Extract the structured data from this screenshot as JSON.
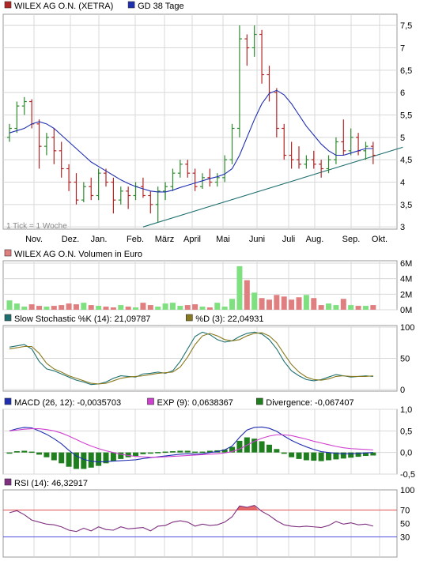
{
  "colors": {
    "up": "#2f8a2f",
    "down": "#b02626",
    "ma": "#1f2fb0",
    "trend": "#1f6f6f",
    "vol_up": "#7fe07f",
    "vol_down": "#e07f7f",
    "stoch_k": "#1f6f6f",
    "stoch_d": "#8a7a1f",
    "macd": "#1f2fb0",
    "exp": "#d040d0",
    "div": "#1f7f1f",
    "rsi": "#7f2f7f",
    "rsi_70": "#e05050",
    "rsi_30": "#5050e0",
    "grid": "#d8d8d8",
    "frame": "#999999"
  },
  "chart_data": [
    {
      "type": "candlestick",
      "legend": [
        {
          "name": "WILEX AG O.N. (XETRA)",
          "color": "#b02626"
        },
        {
          "name": "GD 38 Tage",
          "color": "#1f2fb0"
        }
      ],
      "note": "1 Tick = 1 Woche",
      "x_ticks": [
        "Nov.",
        "Dez.",
        "Jan.",
        "Feb.",
        "März",
        "April",
        "Mai",
        "Juni",
        "Juli",
        "Aug.",
        "Sep.",
        "Okt."
      ],
      "y_ticks": [
        "3",
        "3,5",
        "4",
        "4,5",
        "5",
        "5,5",
        "6",
        "6,5",
        "7",
        "7,5"
      ],
      "ylim": [
        2.95,
        7.75
      ],
      "candles": [
        [
          5.0,
          5.3,
          4.9,
          5.2
        ],
        [
          5.2,
          5.8,
          5.1,
          5.7
        ],
        [
          5.7,
          5.9,
          5.5,
          5.8
        ],
        [
          5.8,
          5.85,
          5.2,
          5.3
        ],
        [
          5.3,
          5.4,
          4.3,
          4.8
        ],
        [
          4.8,
          5.1,
          4.6,
          5.0
        ],
        [
          5.0,
          5.2,
          4.4,
          4.7
        ],
        [
          4.7,
          4.9,
          4.1,
          4.3
        ],
        [
          4.3,
          4.4,
          3.8,
          4.0
        ],
        [
          4.0,
          4.2,
          3.5,
          3.6
        ],
        [
          3.6,
          4.0,
          3.55,
          3.9
        ],
        [
          3.9,
          4.1,
          3.6,
          3.7
        ],
        [
          3.7,
          4.3,
          3.6,
          4.2
        ],
        [
          4.2,
          4.3,
          3.9,
          4.0
        ],
        [
          4.0,
          4.1,
          3.3,
          3.6
        ],
        [
          3.6,
          3.9,
          3.5,
          3.8
        ],
        [
          3.8,
          3.9,
          3.4,
          3.7
        ],
        [
          3.7,
          4.0,
          3.6,
          3.9
        ],
        [
          3.9,
          4.1,
          3.65,
          3.7
        ],
        [
          3.7,
          3.8,
          3.3,
          3.5
        ],
        [
          3.5,
          3.9,
          3.1,
          3.8
        ],
        [
          3.8,
          4.0,
          3.6,
          3.9
        ],
        [
          3.9,
          4.3,
          3.8,
          4.2
        ],
        [
          4.2,
          4.5,
          4.1,
          4.4
        ],
        [
          4.4,
          4.5,
          4.1,
          4.2
        ],
        [
          4.2,
          4.3,
          3.8,
          3.9
        ],
        [
          3.9,
          4.2,
          3.85,
          4.1
        ],
        [
          4.1,
          4.3,
          3.9,
          4.0
        ],
        [
          4.0,
          4.2,
          3.9,
          4.1
        ],
        [
          4.1,
          4.6,
          4.0,
          4.5
        ],
        [
          4.5,
          5.3,
          4.4,
          5.2
        ],
        [
          5.2,
          7.5,
          5.0,
          7.2
        ],
        [
          7.2,
          7.3,
          6.6,
          7.0
        ],
        [
          7.0,
          7.5,
          6.8,
          7.3
        ],
        [
          7.3,
          7.4,
          6.2,
          6.4
        ],
        [
          6.4,
          6.6,
          5.8,
          6.0
        ],
        [
          6.0,
          6.1,
          5.0,
          5.2
        ],
        [
          5.2,
          5.3,
          4.5,
          4.6
        ],
        [
          4.6,
          4.9,
          4.3,
          4.5
        ],
        [
          4.5,
          4.8,
          4.3,
          4.4
        ],
        [
          4.4,
          4.6,
          4.3,
          4.5
        ],
        [
          4.5,
          4.7,
          4.3,
          4.4
        ],
        [
          4.4,
          4.5,
          4.1,
          4.3
        ],
        [
          4.3,
          4.6,
          4.2,
          4.5
        ],
        [
          4.5,
          5.0,
          4.4,
          4.9
        ],
        [
          4.9,
          5.4,
          4.6,
          4.7
        ],
        [
          4.7,
          5.2,
          4.6,
          5.0
        ],
        [
          5.0,
          5.1,
          4.6,
          4.7
        ],
        [
          4.7,
          4.9,
          4.5,
          4.8
        ],
        [
          4.8,
          4.9,
          4.4,
          4.6
        ]
      ],
      "ma": [
        5.1,
        5.15,
        5.2,
        5.3,
        5.35,
        5.3,
        5.2,
        5.05,
        4.9,
        4.75,
        4.6,
        4.45,
        4.35,
        4.25,
        4.15,
        4.05,
        3.97,
        3.9,
        3.85,
        3.8,
        3.78,
        3.78,
        3.82,
        3.88,
        3.93,
        3.98,
        4.03,
        4.08,
        4.12,
        4.18,
        4.3,
        4.6,
        5.0,
        5.4,
        5.75,
        5.98,
        6.05,
        5.95,
        5.75,
        5.5,
        5.25,
        5.05,
        4.85,
        4.7,
        4.6,
        4.6,
        4.65,
        4.7,
        4.75,
        4.75
      ],
      "trend": {
        "from_index": 18,
        "from_value": 3.0,
        "to_index": 53,
        "to_value": 4.78
      }
    },
    {
      "type": "bar",
      "legend": [
        {
          "name": "WILEX AG O.N. Volumen in Euro",
          "color": "#e07f7f"
        }
      ],
      "y_ticks": [
        "0M",
        "2M",
        "4M",
        "6M"
      ],
      "ylim": [
        0,
        6.3
      ],
      "values": [
        1.2,
        0.8,
        0.4,
        0.7,
        0.5,
        0.4,
        0.5,
        0.6,
        0.8,
        0.7,
        0.9,
        0.6,
        0.5,
        0.4,
        0.3,
        0.6,
        0.4,
        0.3,
        0.9,
        0.6,
        0.4,
        0.8,
        0.9,
        0.5,
        0.6,
        0.7,
        0.4,
        0.3,
        0.9,
        0.4,
        1.4,
        5.6,
        3.8,
        2.2,
        1.5,
        1.3,
        1.9,
        1.7,
        1.3,
        1.6,
        1.9,
        1.5,
        0.6,
        0.8,
        0.6,
        1.4,
        0.6,
        0.5,
        0.5,
        0.6
      ]
    },
    {
      "type": "line",
      "legend": [
        {
          "name": "Slow Stochastic %K (14): 21,09787",
          "color": "#1f6f6f"
        },
        {
          "name": "%D (3): 22,04931",
          "color": "#8a7a1f"
        }
      ],
      "y_ticks": [
        "0",
        "50",
        "100"
      ],
      "ylim": [
        0,
        100
      ],
      "series": [
        {
          "name": "Slow Stochastic %K (14): 21,09787",
          "values": [
            68,
            70,
            72,
            65,
            45,
            33,
            30,
            25,
            20,
            15,
            12,
            8,
            9,
            12,
            18,
            22,
            21,
            20,
            25,
            26,
            28,
            26,
            30,
            45,
            65,
            85,
            92,
            88,
            80,
            76,
            78,
            85,
            90,
            92,
            89,
            80,
            65,
            45,
            30,
            22,
            16,
            14,
            16,
            20,
            24,
            22,
            20,
            21,
            22,
            21
          ]
        },
        {
          "name": "%D (3): 22,04931",
          "values": [
            65,
            67,
            69,
            69,
            58,
            42,
            33,
            28,
            22,
            18,
            14,
            10,
            9,
            10,
            14,
            18,
            20,
            21,
            22,
            24,
            26,
            27,
            28,
            36,
            52,
            72,
            86,
            90,
            86,
            80,
            78,
            80,
            86,
            90,
            91,
            86,
            75,
            57,
            40,
            28,
            20,
            16,
            15,
            17,
            21,
            22,
            21,
            21,
            21,
            22
          ]
        }
      ]
    },
    {
      "type": "line_bar",
      "legend": [
        {
          "name": "MACD (26, 12): -0,0035703",
          "color": "#1f2fb0"
        },
        {
          "name": "EXP (9): 0,0638367",
          "color": "#d040d0"
        },
        {
          "name": "Divergence: -0,067407",
          "color": "#1f7f1f"
        }
      ],
      "y_ticks": [
        "-0,5",
        "0,0",
        "0,5",
        "1,0"
      ],
      "ylim": [
        -0.5,
        1.0
      ],
      "series": [
        {
          "name": "MACD (26, 12): -0,0035703",
          "values": [
            0.5,
            0.55,
            0.58,
            0.57,
            0.5,
            0.42,
            0.32,
            0.2,
            0.05,
            -0.08,
            -0.16,
            -0.2,
            -0.22,
            -0.21,
            -0.2,
            -0.19,
            -0.18,
            -0.17,
            -0.14,
            -0.12,
            -0.1,
            -0.08,
            -0.06,
            -0.04,
            -0.03,
            -0.04,
            -0.03,
            0.0,
            0.02,
            0.06,
            0.15,
            0.35,
            0.52,
            0.58,
            0.59,
            0.56,
            0.49,
            0.38,
            0.28,
            0.2,
            0.13,
            0.07,
            0.02,
            0.0,
            -0.02,
            -0.03,
            -0.03,
            -0.02,
            -0.01,
            0.0
          ]
        },
        {
          "name": "EXP (9): 0,0638367",
          "values": [
            0.5,
            0.52,
            0.54,
            0.55,
            0.55,
            0.53,
            0.5,
            0.45,
            0.38,
            0.3,
            0.22,
            0.15,
            0.09,
            0.04,
            0.0,
            -0.04,
            -0.07,
            -0.09,
            -0.1,
            -0.11,
            -0.11,
            -0.1,
            -0.09,
            -0.08,
            -0.07,
            -0.06,
            -0.05,
            -0.04,
            -0.03,
            -0.01,
            0.02,
            0.08,
            0.17,
            0.26,
            0.33,
            0.38,
            0.41,
            0.41,
            0.39,
            0.35,
            0.31,
            0.26,
            0.22,
            0.18,
            0.14,
            0.11,
            0.09,
            0.08,
            0.07,
            0.06
          ]
        }
      ],
      "divergence": [
        0.0,
        0.03,
        0.04,
        0.02,
        -0.05,
        -0.11,
        -0.18,
        -0.25,
        -0.33,
        -0.38,
        -0.38,
        -0.35,
        -0.31,
        -0.25,
        -0.2,
        -0.15,
        -0.11,
        -0.08,
        -0.04,
        -0.01,
        0.01,
        0.02,
        0.03,
        0.04,
        0.04,
        0.02,
        0.02,
        0.04,
        0.05,
        0.07,
        0.13,
        0.27,
        0.35,
        0.32,
        0.26,
        0.18,
        0.08,
        -0.03,
        -0.11,
        -0.15,
        -0.18,
        -0.19,
        -0.2,
        -0.18,
        -0.16,
        -0.14,
        -0.12,
        -0.1,
        -0.08,
        -0.07
      ]
    },
    {
      "type": "line",
      "legend": [
        {
          "name": "RSI (14): 46,32917",
          "color": "#7f2f7f"
        }
      ],
      "y_ticks": [
        "30",
        "50",
        "70",
        "100"
      ],
      "ylim": [
        0,
        100
      ],
      "levels": [
        70,
        30
      ],
      "series": [
        {
          "name": "RSI (14): 46,32917",
          "values": [
            66,
            69,
            63,
            55,
            52,
            49,
            48,
            45,
            40,
            38,
            43,
            39,
            45,
            41,
            40,
            45,
            42,
            43,
            44,
            39,
            46,
            47,
            52,
            54,
            52,
            46,
            49,
            47,
            48,
            52,
            60,
            76,
            74,
            77,
            68,
            62,
            54,
            48,
            46,
            45,
            46,
            45,
            44,
            47,
            53,
            49,
            51,
            48,
            49,
            46
          ]
        }
      ]
    }
  ]
}
